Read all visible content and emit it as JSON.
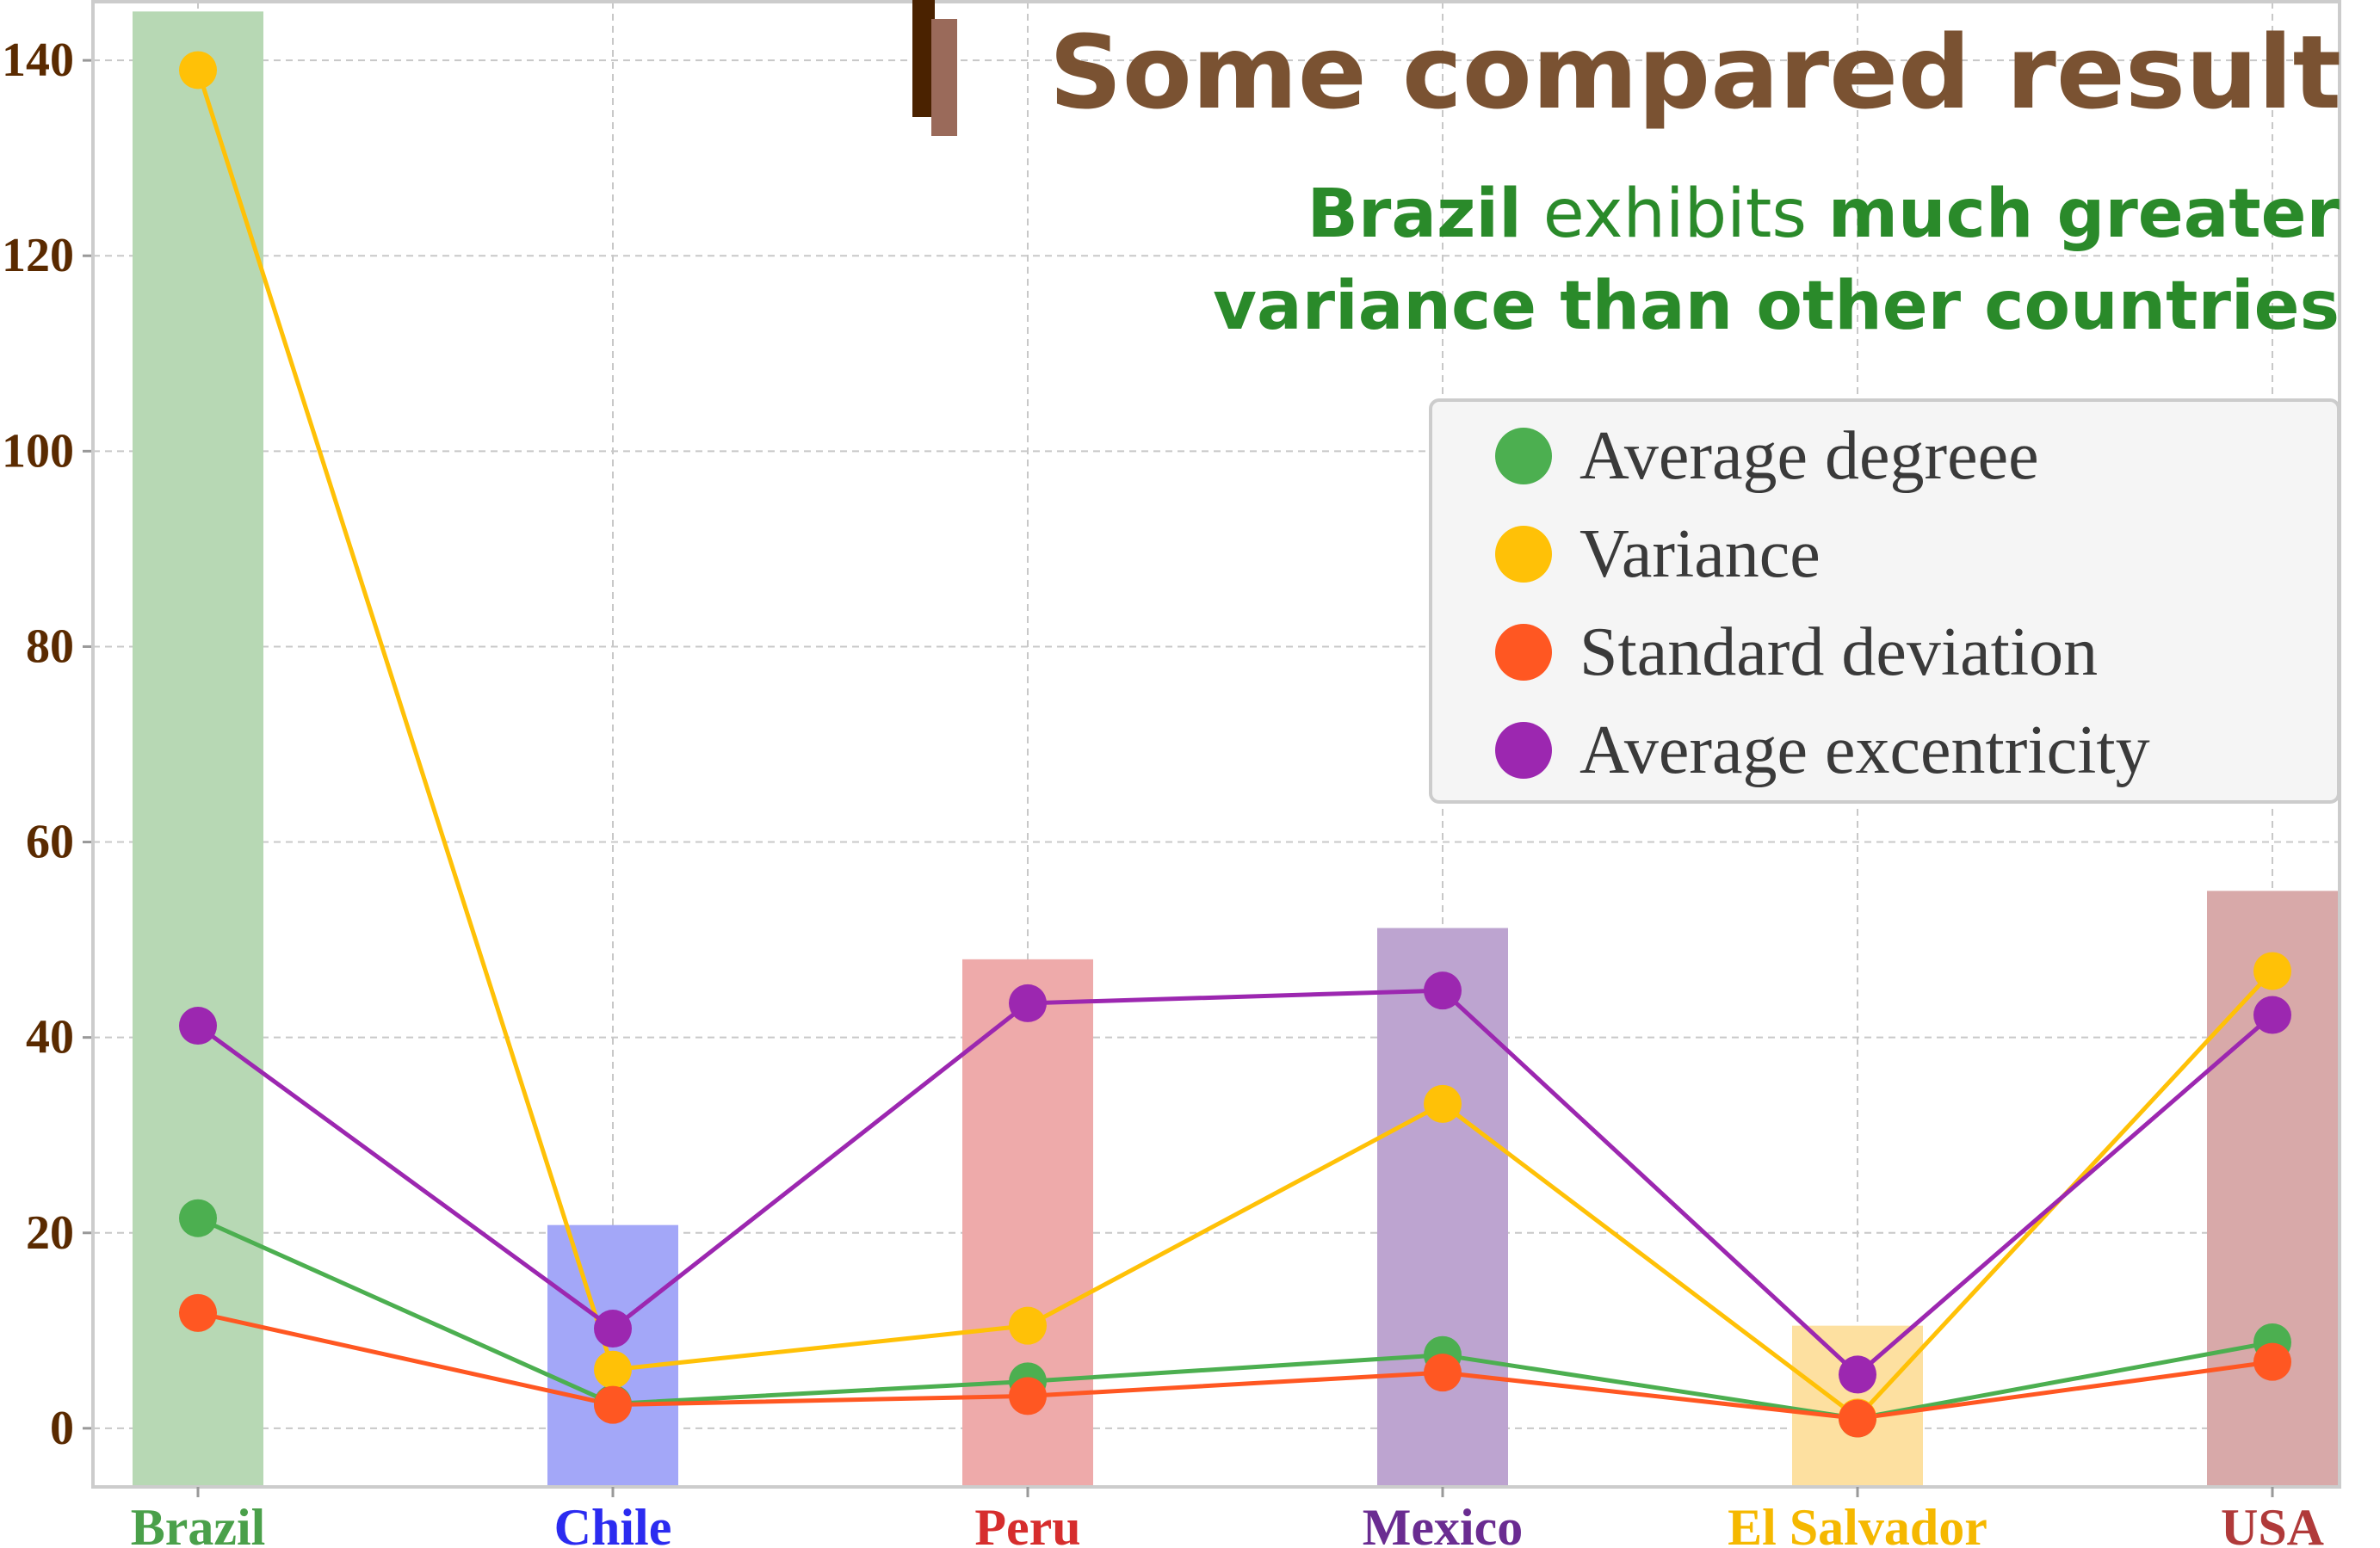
{
  "chart_data": {
    "type": "bar",
    "title": "Some compared result",
    "subtitle": {
      "line1": [
        {
          "text": "Brazil",
          "bold": true
        },
        {
          "text": " exhibits ",
          "bold": false
        },
        {
          "text": "much greater",
          "bold": true
        }
      ],
      "line2": [
        {
          "text": "variance than other countries",
          "bold": true
        }
      ]
    },
    "categories": [
      "Brazil",
      "Chile",
      "Peru",
      "Mexico",
      "El Salvador",
      "USA"
    ],
    "category_colors": [
      "#4aa04a",
      "#2b2bf0",
      "#d62d2d",
      "#6a2c91",
      "#f5b800",
      "#b03a3a"
    ],
    "bar_series": {
      "values": [
        145,
        20.8,
        48,
        51.2,
        10.5,
        55
      ],
      "colors": [
        "#b7d8b4",
        "#a3a7f8",
        "#eeaaaa",
        "#bda4d0",
        "#fde0a0",
        "#d8a9a9"
      ]
    },
    "series": [
      {
        "name": "Average degreee",
        "color": "#4caf50",
        "values": [
          21.5,
          2.5,
          4.8,
          7.5,
          1.0,
          8.8
        ]
      },
      {
        "name": "Variance",
        "color": "#ffc107",
        "values": [
          139,
          6.0,
          10.5,
          33.2,
          1.1,
          46.8
        ]
      },
      {
        "name": "Standard deviation",
        "color": "#ff5722",
        "values": [
          11.8,
          2.4,
          3.3,
          5.7,
          1.0,
          6.8
        ]
      },
      {
        "name": "Average excentricity",
        "color": "#9c27b0",
        "values": [
          41.2,
          10.2,
          43.5,
          44.8,
          5.5,
          42.3
        ]
      }
    ],
    "yticks": [
      "0",
      "20",
      "40",
      "60",
      "80",
      "100",
      "120",
      "140"
    ],
    "ylim": [
      -6,
      146
    ],
    "xlabel": "",
    "ylabel": "",
    "grid": true,
    "legend_position": "upper-right",
    "colors": {
      "title": "#7a5232",
      "title_bar_dark": "#4a2200",
      "title_bar_light": "#9a6a5a",
      "subtitle": "#2a8a2a",
      "ytick": "#5a2a00",
      "legend_text": "#3a3a3a"
    }
  }
}
